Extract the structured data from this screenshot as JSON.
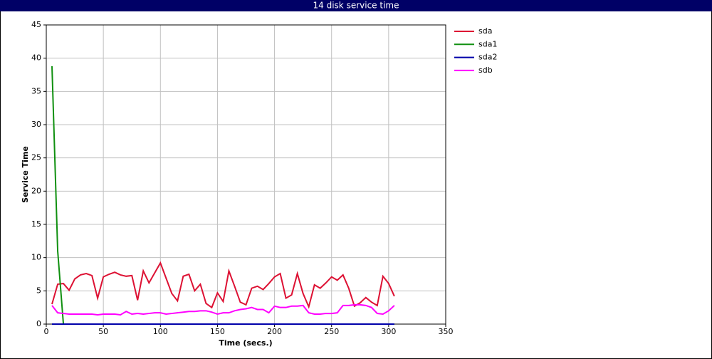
{
  "chart_data": {
    "type": "line",
    "title": "14 disk service time",
    "xlabel": "Time (secs.)",
    "ylabel": "Service Time",
    "x": [
      5,
      10,
      15,
      20,
      25,
      30,
      35,
      40,
      45,
      50,
      55,
      60,
      65,
      70,
      75,
      80,
      85,
      90,
      95,
      100,
      105,
      110,
      115,
      120,
      125,
      130,
      135,
      140,
      145,
      150,
      155,
      160,
      165,
      170,
      175,
      180,
      185,
      190,
      195,
      200,
      205,
      210,
      215,
      220,
      225,
      230,
      235,
      240,
      245,
      250,
      255,
      260,
      265,
      270,
      275,
      280,
      285,
      290,
      295,
      300,
      305
    ],
    "series": [
      {
        "name": "sda",
        "color": "#dd1133",
        "values": [
          3.0,
          6.0,
          6.1,
          5.1,
          6.8,
          7.4,
          7.6,
          7.3,
          3.9,
          7.1,
          7.5,
          7.8,
          7.4,
          7.2,
          7.3,
          3.6,
          8.0,
          6.2,
          7.7,
          9.2,
          6.9,
          4.6,
          3.5,
          7.2,
          7.5,
          5.0,
          6.0,
          3.1,
          2.5,
          4.7,
          3.4,
          8.0,
          5.7,
          3.3,
          2.9,
          5.4,
          5.7,
          5.2,
          6.1,
          7.1,
          7.6,
          3.9,
          4.4,
          7.6,
          4.6,
          2.6,
          5.9,
          5.4,
          6.2,
          7.1,
          6.6,
          7.4,
          5.4,
          2.7,
          3.2,
          4.0,
          3.3,
          2.8,
          7.2,
          6.1,
          4.2
        ]
      },
      {
        "name": "sda1",
        "color": "#109010",
        "values": [
          38.8,
          11.0,
          0,
          0,
          0,
          0,
          0,
          0,
          0,
          0,
          0,
          0,
          0,
          0,
          0,
          0,
          0,
          0,
          0,
          0,
          0,
          0,
          0,
          0,
          0,
          0,
          0,
          0,
          0,
          0,
          0,
          0,
          0,
          0,
          0,
          0,
          0,
          0,
          0,
          0,
          0,
          0,
          0,
          0,
          0,
          0,
          0,
          0,
          0,
          0,
          0,
          0,
          0,
          0,
          0,
          0,
          0,
          0,
          0,
          0,
          0
        ]
      },
      {
        "name": "sda2",
        "color": "#0000aa",
        "values": [
          0,
          0,
          0,
          0,
          0,
          0,
          0,
          0,
          0,
          0,
          0,
          0,
          0,
          0,
          0,
          0,
          0,
          0,
          0,
          0,
          0,
          0,
          0,
          0,
          0,
          0,
          0,
          0,
          0,
          0,
          0,
          0,
          0,
          0,
          0,
          0,
          0,
          0,
          0,
          0,
          0,
          0,
          0,
          0,
          0,
          0,
          0,
          0,
          0,
          0,
          0,
          0,
          0,
          0,
          0,
          0,
          0,
          0,
          0,
          0,
          0
        ]
      },
      {
        "name": "sdb",
        "color": "#ff00ff",
        "values": [
          2.8,
          1.7,
          1.6,
          1.5,
          1.5,
          1.5,
          1.5,
          1.5,
          1.4,
          1.5,
          1.5,
          1.5,
          1.4,
          1.9,
          1.5,
          1.6,
          1.5,
          1.6,
          1.7,
          1.7,
          1.5,
          1.6,
          1.7,
          1.8,
          1.9,
          1.9,
          2.0,
          2.0,
          1.8,
          1.5,
          1.7,
          1.7,
          2.0,
          2.2,
          2.3,
          2.5,
          2.2,
          2.2,
          1.7,
          2.7,
          2.5,
          2.5,
          2.7,
          2.7,
          2.8,
          1.7,
          1.5,
          1.5,
          1.6,
          1.6,
          1.7,
          2.8,
          2.8,
          2.9,
          2.9,
          2.8,
          2.5,
          1.6,
          1.5,
          2.0,
          2.8
        ]
      }
    ],
    "xlim": [
      0,
      350
    ],
    "xticks": [
      0,
      50,
      100,
      150,
      200,
      250,
      300,
      350
    ],
    "ylim": [
      0,
      45
    ],
    "yticks": [
      0,
      5,
      10,
      15,
      20,
      25,
      30,
      35,
      40,
      45
    ],
    "grid": true
  }
}
